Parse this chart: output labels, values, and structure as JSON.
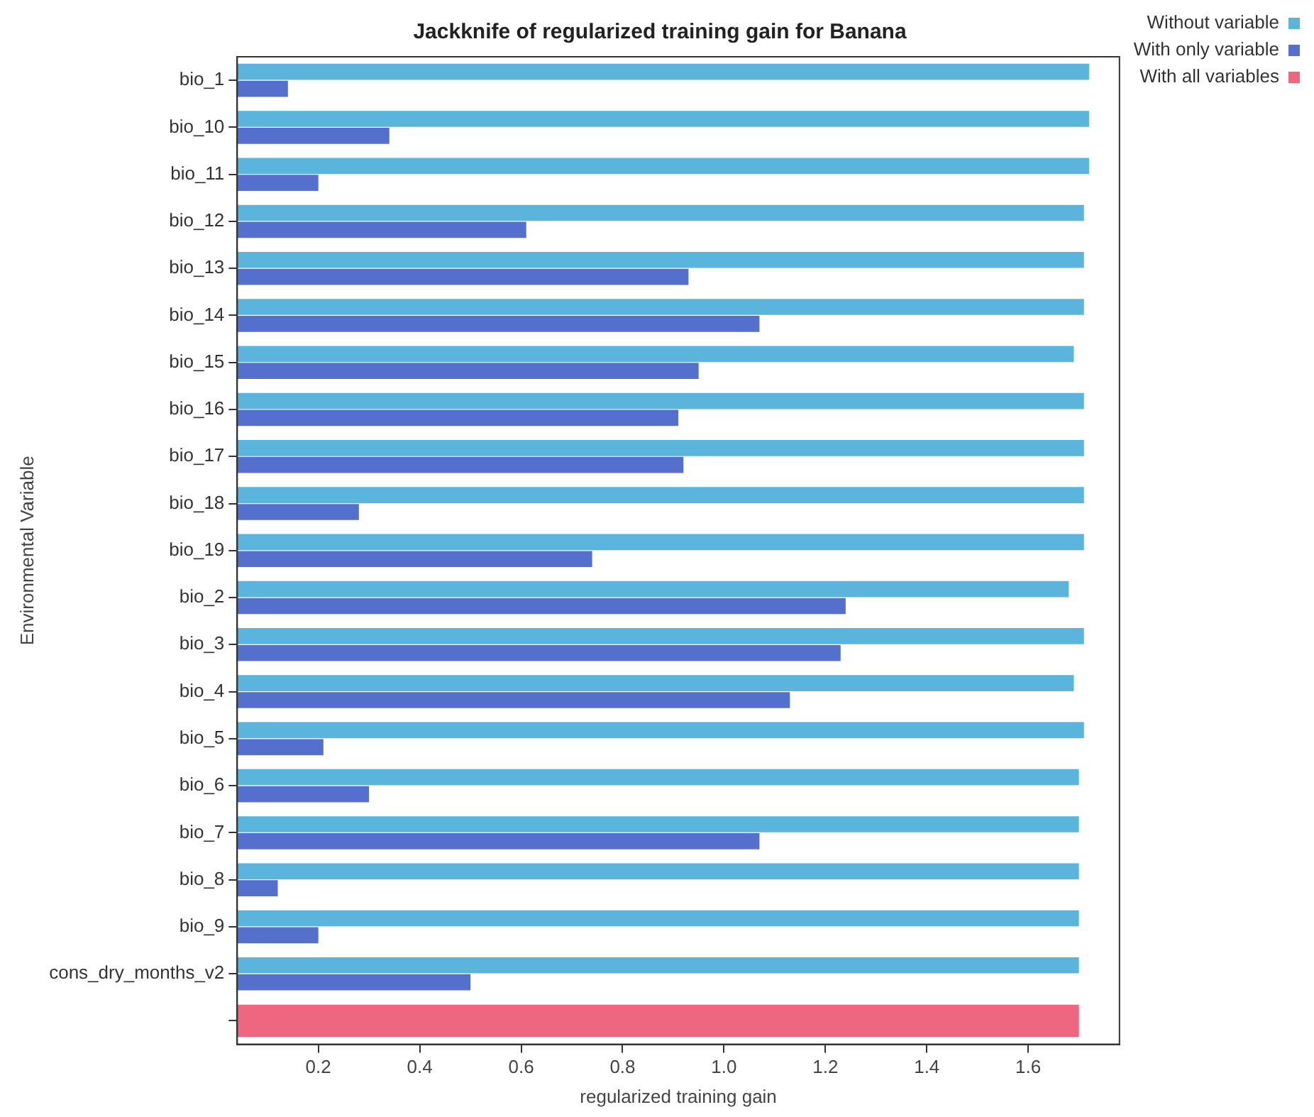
{
  "chart_data": {
    "type": "bar",
    "orientation": "horizontal",
    "title": "Jackknife of regularized training gain for Banana",
    "xlabel": "regularized training gain",
    "ylabel": "Environmental Variable",
    "categories": [
      "bio_1",
      "bio_10",
      "bio_11",
      "bio_12",
      "bio_13",
      "bio_14",
      "bio_15",
      "bio_16",
      "bio_17",
      "bio_18",
      "bio_19",
      "bio_2",
      "bio_3",
      "bio_4",
      "bio_5",
      "bio_6",
      "bio_7",
      "bio_8",
      "bio_9",
      "cons_dry_months_v2",
      null
    ],
    "series": [
      {
        "name": "Without variable",
        "color": "#5ab4dc",
        "values": [
          1.72,
          1.72,
          1.72,
          1.71,
          1.71,
          1.71,
          1.69,
          1.71,
          1.71,
          1.71,
          1.71,
          1.68,
          1.71,
          1.69,
          1.71,
          1.7,
          1.7,
          1.7,
          1.7,
          1.7,
          null
        ]
      },
      {
        "name": "With only variable",
        "color": "#5470cc",
        "values": [
          0.14,
          0.34,
          0.2,
          0.61,
          0.93,
          1.07,
          0.95,
          0.91,
          0.92,
          0.28,
          0.74,
          1.24,
          1.23,
          1.13,
          0.21,
          0.3,
          1.07,
          0.12,
          0.2,
          0.5,
          null
        ]
      },
      {
        "name": "With all variables",
        "color": "#ee6680",
        "values": [
          null,
          null,
          null,
          null,
          null,
          null,
          null,
          null,
          null,
          null,
          null,
          null,
          null,
          null,
          null,
          null,
          null,
          null,
          null,
          null,
          1.7
        ]
      }
    ],
    "xlim": [
      0.04,
      1.78
    ],
    "xticks": [
      0.2,
      0.4,
      0.6,
      0.8,
      {
        "value": 1,
        "label": "1.0"
      },
      1.2,
      1.4,
      1.6
    ],
    "grid": false,
    "legend": "top right"
  }
}
